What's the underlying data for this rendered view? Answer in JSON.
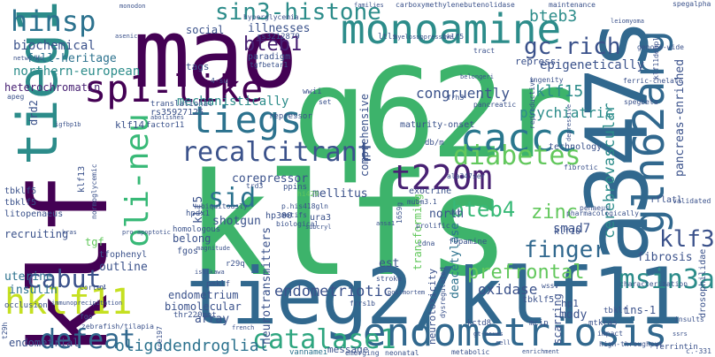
{
  "word_cloud": {
    "background": "#ffffff",
    "palette": [
      "#440154",
      "#3b528b",
      "#21918c",
      "#5ec962",
      "#fde725"
    ],
    "words": [
      {
        "text": "klfs",
        "color": "#3db36b"
      },
      {
        "text": "tieg2/klf11",
        "color": "#31688e"
      },
      {
        "text": "klf",
        "color": "#440154"
      },
      {
        "text": "q62r",
        "color": "#3db36b"
      },
      {
        "text": "mao",
        "color": "#440154"
      },
      {
        "text": "a347s",
        "color": "#31688e"
      },
      {
        "text": "monoamine",
        "color": "#2c8c8a"
      },
      {
        "text": "tieg1",
        "color": "#2c8c8a"
      },
      {
        "text": "endometriosis",
        "color": "#31688e"
      },
      {
        "text": "sp1-like",
        "color": "#440154"
      },
      {
        "text": "gln62arg",
        "color": "#31688e"
      },
      {
        "text": "hklf11",
        "color": "#c5e021"
      },
      {
        "text": "caccc",
        "color": "#2a778e"
      },
      {
        "text": "t220m",
        "color": "#482173"
      },
      {
        "text": "tiegs",
        "color": "#2c728e"
      },
      {
        "text": "catalase1",
        "color": "#2ea57f"
      },
      {
        "text": "recalcitrant",
        "color": "#3b528b"
      },
      {
        "text": "diabetes",
        "color": "#63c85d"
      },
      {
        "text": "oli-neu",
        "color": "#38b977"
      },
      {
        "text": "msin3a",
        "color": "#2c8c8a"
      },
      {
        "text": "hinsp",
        "color": "#2c728e"
      },
      {
        "text": "sin3-histone",
        "color": "#2c8c8a"
      },
      {
        "text": "defeat",
        "color": "#31688e"
      },
      {
        "text": "cabut",
        "color": "#3b528b"
      },
      {
        "text": "gc-rich",
        "color": "#3b528b"
      },
      {
        "text": "bteb1",
        "color": "#482173"
      },
      {
        "text": "sid",
        "color": "#2c728e"
      },
      {
        "text": "bteb4",
        "color": "#38b977"
      },
      {
        "text": "klf3",
        "color": "#3b528b"
      },
      {
        "text": "finger",
        "color": "#31688e"
      },
      {
        "text": "zinc",
        "color": "#63c85d"
      },
      {
        "text": "prefrontal",
        "color": "#63c85d"
      },
      {
        "text": "oligodendroglial",
        "color": "#2c728e"
      },
      {
        "text": "endometriotic",
        "color": "#3b528b"
      },
      {
        "text": "cerebrovascular",
        "color": "#2c8c8a"
      },
      {
        "text": "bteb3",
        "color": "#2c8c8a"
      },
      {
        "text": "biochemical",
        "color": "#3b528b"
      },
      {
        "text": "full-heritage",
        "color": "#2c728e"
      },
      {
        "text": "northern-european",
        "color": "#2c8c8a"
      },
      {
        "text": "heterochromatin",
        "color": "#482173"
      },
      {
        "text": "mechanistically",
        "color": "#2c8c8a"
      },
      {
        "text": "congruently",
        "color": "#3b528b"
      },
      {
        "text": "klf15",
        "color": "#2c8c8a"
      },
      {
        "text": "psychiatric",
        "color": "#2c8c8a"
      },
      {
        "text": "epigenetically",
        "color": "#3b528b"
      },
      {
        "text": "pancreas-enriched",
        "color": "#3b528b"
      },
      {
        "text": "paradigm",
        "color": "#3b528b"
      },
      {
        "text": "illnesses",
        "color": "#3b528b"
      },
      {
        "text": "social",
        "color": "#3b528b"
      },
      {
        "text": "tags",
        "color": "#3b528b"
      },
      {
        "text": "corepressor",
        "color": "#3b528b"
      },
      {
        "text": "shotgun",
        "color": "#3b528b"
      },
      {
        "text": "mellitus",
        "color": "#3b528b"
      },
      {
        "text": "smad7",
        "color": "#3b528b"
      },
      {
        "text": "oxidase",
        "color": "#3b528b"
      },
      {
        "text": "klf5",
        "color": "#3b528b"
      },
      {
        "text": "uterine",
        "color": "#2c728e"
      },
      {
        "text": "insulin",
        "color": "#2c728e"
      },
      {
        "text": "endometrium",
        "color": "#3b528b"
      },
      {
        "text": "biomolecular",
        "color": "#3b528b"
      },
      {
        "text": "array",
        "color": "#3b528b"
      },
      {
        "text": "outline",
        "color": "#3b528b"
      },
      {
        "text": "belong",
        "color": "#3b528b"
      },
      {
        "text": "tgf",
        "color": "#63c85d"
      },
      {
        "text": "recruiting",
        "color": "#3b528b"
      },
      {
        "text": "litopenaeus",
        "color": "#3b528b"
      },
      {
        "text": "fibrosis",
        "color": "#3b528b"
      },
      {
        "text": "scarring",
        "color": "#3b528b"
      },
      {
        "text": "mody",
        "color": "#3b528b"
      },
      {
        "text": "hp1",
        "color": "#3b528b"
      },
      {
        "text": "mcip",
        "color": "#3b528b"
      },
      {
        "text": "ins-1",
        "color": "#3b528b"
      },
      {
        "text": "vannamei",
        "color": "#2c728e"
      },
      {
        "text": "neurotransmitters",
        "color": "#3b528b"
      },
      {
        "text": "neurotoxicity",
        "color": "#3b528b"
      },
      {
        "text": "transforming",
        "color": "#63c85d"
      },
      {
        "text": "deacetylase",
        "color": "#2c728e"
      },
      {
        "text": "comprehensive",
        "color": "#3b528b"
      },
      {
        "text": "est",
        "color": "#3b528b"
      },
      {
        "text": "north",
        "color": "#3b528b"
      },
      {
        "text": "endometrial",
        "color": "#3b528b"
      },
      {
        "text": "occlusion",
        "color": "#3b528b"
      },
      {
        "text": "rs35927125",
        "color": "#3b528b"
      },
      {
        "text": "klf14",
        "color": "#3b528b"
      },
      {
        "text": "factor11",
        "color": "#3b528b"
      },
      {
        "text": "klf13",
        "color": "#3b528b"
      },
      {
        "text": "drd2",
        "color": "#3b528b"
      },
      {
        "text": "tbklf5",
        "color": "#3b528b"
      },
      {
        "text": "hpdx1",
        "color": "#3b528b"
      },
      {
        "text": "hp300",
        "color": "#3b528b"
      },
      {
        "text": "ura3",
        "color": "#3b528b"
      },
      {
        "text": "fgos",
        "color": "#3b528b"
      },
      {
        "text": "r29q",
        "color": "#3b528b"
      },
      {
        "text": "pmklf",
        "color": "#3b528b"
      },
      {
        "text": "thr220met",
        "color": "#3b528b"
      },
      {
        "text": "technology",
        "color": "#3b528b"
      },
      {
        "text": "exocrine",
        "color": "#3b528b"
      },
      {
        "text": "maturity-onset",
        "color": "#3b528b"
      },
      {
        "text": "repress",
        "color": "#3b528b"
      },
      {
        "text": "klf10",
        "color": "#3b528b"
      },
      {
        "text": "fopamine",
        "color": "#3b528b"
      },
      {
        "text": "message",
        "color": "#3b528b"
      },
      {
        "text": "hce197",
        "color": "#3b528b"
      },
      {
        "text": "tbklf",
        "color": "#3b528b"
      },
      {
        "text": "mtkras",
        "color": "#3b528b"
      },
      {
        "text": "ferrintin",
        "color": "#3b528b"
      },
      {
        "text": "kctd8",
        "color": "#3b528b"
      },
      {
        "text": "wssv",
        "color": "#3b528b"
      },
      {
        "text": "carboxymethylenebutenolidase",
        "color": "#3b528b"
      },
      {
        "text": "maintenance",
        "color": "#3b528b"
      },
      {
        "text": "hyperglycemia",
        "color": "#3b528b"
      },
      {
        "text": "translational",
        "color": "#3b528b"
      },
      {
        "text": "ppins",
        "color": "#3b528b"
      },
      {
        "text": "trd3",
        "color": "#3b528b"
      },
      {
        "text": "t29h",
        "color": "#3b528b"
      },
      {
        "text": "fgo",
        "color": "#3b528b"
      },
      {
        "text": "tfophenyl",
        "color": "#3b528b"
      },
      {
        "text": "homologous",
        "color": "#3b528b"
      },
      {
        "text": "neonatal",
        "color": "#3b528b"
      },
      {
        "text": "emerging",
        "color": "#3b528b"
      },
      {
        "text": "metabolic",
        "color": "#3b528b"
      },
      {
        "text": "rs3212879",
        "color": "#3b528b"
      },
      {
        "text": "tgfbetar1",
        "color": "#3b528b"
      },
      {
        "text": "ingenity",
        "color": "#3b528b"
      },
      {
        "text": "ferric-chelate",
        "color": "#3b528b"
      },
      {
        "text": "spegbeta",
        "color": "#3b528b"
      },
      {
        "text": "spegalpha",
        "color": "#3b528b"
      },
      {
        "text": "genome-wide",
        "color": "#3b528b"
      },
      {
        "text": "reproductive",
        "color": "#3b528b"
      },
      {
        "text": "pancreatic",
        "color": "#3b528b"
      },
      {
        "text": "fibrotic",
        "color": "#3b528b"
      },
      {
        "text": "1659g",
        "color": "#3b528b"
      },
      {
        "text": "mubm3.1",
        "color": "#3b528b"
      },
      {
        "text": "p.his418gln",
        "color": "#3b528b"
      },
      {
        "text": "motifs",
        "color": "#3b528b"
      },
      {
        "text": "biological",
        "color": "#3b528b"
      },
      {
        "text": "prolific",
        "color": "#3b528b"
      },
      {
        "text": "cdna",
        "color": "#3b528b"
      },
      {
        "text": "stroke",
        "color": "#3b528b"
      },
      {
        "text": "dysregulated",
        "color": "#3b528b"
      },
      {
        "text": "validated",
        "color": "#3b528b"
      },
      {
        "text": "penaeus",
        "color": "#3b528b"
      },
      {
        "text": "rflatl",
        "color": "#3b528b"
      },
      {
        "text": "characterization",
        "color": "#3b528b"
      },
      {
        "text": "pharmacologically",
        "color": "#3b528b"
      },
      {
        "text": "drosophilidae",
        "color": "#3b528b"
      },
      {
        "text": "insults",
        "color": "#3b528b"
      },
      {
        "text": "impact",
        "color": "#3b528b"
      },
      {
        "text": "high-throughput",
        "color": "#3b528b"
      },
      {
        "text": "c.-331",
        "color": "#3b528b"
      },
      {
        "text": "ala347ser",
        "color": "#3b528b"
      },
      {
        "text": "db/m",
        "color": "#3b528b"
      },
      {
        "text": "wwii",
        "color": "#3b528b"
      },
      {
        "text": "4-su",
        "color": "#3b528b"
      },
      {
        "text": "ltls",
        "color": "#3b528b"
      },
      {
        "text": "myelosuppressive",
        "color": "#3b528b"
      },
      {
        "text": "tract",
        "color": "#3b528b"
      },
      {
        "text": "frh3",
        "color": "#3b528b"
      },
      {
        "text": "belongeri",
        "color": "#3b528b"
      },
      {
        "text": "repressor",
        "color": "#3b528b"
      },
      {
        "text": "abolishes",
        "color": "#3b528b"
      },
      {
        "text": "ubiquitously",
        "color": "#3b528b"
      },
      {
        "text": "normoglycemic",
        "color": "#3b528b"
      },
      {
        "text": "pro-apoptotic",
        "color": "#3b528b"
      },
      {
        "text": "subcryl",
        "color": "#3b528b"
      },
      {
        "text": "ishikawa",
        "color": "#3b528b"
      },
      {
        "text": "magnitude",
        "color": "#3b528b"
      },
      {
        "text": "zebrafish/tilapia",
        "color": "#3b528b"
      },
      {
        "text": "immunoprecipitation",
        "color": "#3b528b"
      },
      {
        "text": "cortex",
        "color": "#3b528b"
      },
      {
        "text": "french",
        "color": "#3b528b"
      },
      {
        "text": "asenic",
        "color": "#3b528b"
      },
      {
        "text": "networks",
        "color": "#3b528b"
      },
      {
        "text": "apeg",
        "color": "#3b528b"
      },
      {
        "text": "igfbp1b",
        "color": "#3b528b"
      },
      {
        "text": "monodon",
        "color": "#3b528b"
      },
      {
        "text": "families",
        "color": "#3b528b"
      },
      {
        "text": "leiomyoma",
        "color": "#3b528b"
      },
      {
        "text": "klf11dehpl",
        "color": "#3b528b"
      },
      {
        "text": "postmortem",
        "color": "#3b528b"
      },
      {
        "text": "frrs1b",
        "color": "#3b528b"
      },
      {
        "text": "tbklf5",
        "color": "#3b528b"
      },
      {
        "text": "kras",
        "color": "#3b528b"
      },
      {
        "text": "r1",
        "color": "#3b528b"
      },
      {
        "text": "hklf5",
        "color": "#3b528b"
      },
      {
        "text": "hi429",
        "color": "#3b528b"
      },
      {
        "text": "ansa1",
        "color": "#3b528b"
      },
      {
        "text": "ww1",
        "color": "#3b528b"
      },
      {
        "text": "cell",
        "color": "#3b528b"
      },
      {
        "text": "depressive",
        "color": "#3b528b"
      },
      {
        "text": "tbklf5",
        "color": "#3b528b"
      },
      {
        "text": "set",
        "color": "#3b528b"
      },
      {
        "text": "gt-boxes",
        "color": "#3b528b"
      },
      {
        "text": "ssrs",
        "color": "#3b528b"
      },
      {
        "text": "enrichment",
        "color": "#3b528b"
      }
    ]
  }
}
